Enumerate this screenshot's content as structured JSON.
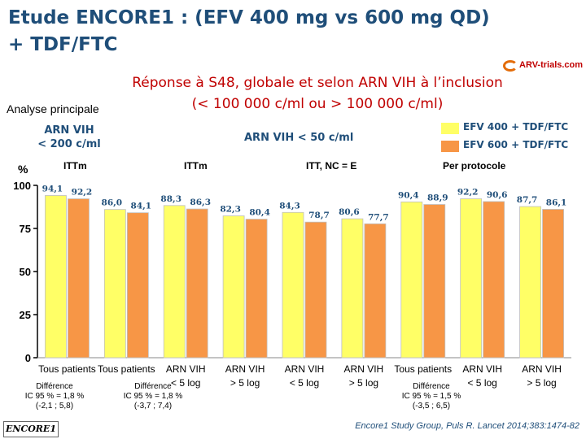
{
  "title_line1": "Etude ENCORE1 : (EFV 400 mg vs 600 mg QD)",
  "title_line2": "+ TDF/FTC",
  "logo_text": "ARV-trials.com",
  "subtitle_line1": "Réponse à S48, globale et selon ARN VIH à l’inclusion",
  "subtitle_line2": "(< 100 000 c/ml ou > 100 000 c/ml)",
  "analysis_label": "Analyse principale",
  "header_arn200_line1": "ARN VIH",
  "header_arn200_line2": "< 200 c/ml",
  "header_arn50": "ARN VIH < 50 c/ml",
  "group_labels": [
    "ITTm",
    "ITTm",
    "ITT, NC = E",
    "Per protocole"
  ],
  "y_unit": "%",
  "footnotes": {
    "diff1_line1": "Différence",
    "diff1_line2": "IC 95 % = 1,8 %",
    "diff1_line3": "(-2,1 ; 5,8)",
    "diff2_line1": "Différence",
    "diff2_line2": "IC 95 % = 1,8 %",
    "diff2_line3": "(-3,7 ; 7,4)",
    "diff3_line1": "Différence",
    "diff3_line2": "IC 95 % = 1,5 %",
    "diff3_line3": "(-3,5 ; 6,5)"
  },
  "study_tag": "ENCORE1",
  "citation": "Encore1 Study Group, Puls R. Lancet 2014;383:1474-82",
  "chart_data": {
    "type": "bar",
    "title": "Réponse à S48, globale et selon ARN VIH à l’inclusion",
    "ylabel": "%",
    "ylim": [
      0,
      100
    ],
    "yticks": [
      0,
      25,
      50,
      75,
      100
    ],
    "categories": [
      "Tous patients",
      "Tous patients",
      "ARN VIH < 5 log",
      "ARN VIH > 5 log",
      "ARN VIH < 5 log",
      "ARN VIH > 5 log",
      "Tous patients",
      "ARN VIH < 5 log",
      "ARN VIH > 5 log"
    ],
    "series": [
      {
        "name": "EFV 400 + TDF/FTC",
        "color": "#FFFF66",
        "values": [
          94.1,
          86.0,
          88.3,
          82.3,
          84.3,
          80.6,
          90.4,
          92.2,
          87.7
        ]
      },
      {
        "name": "EFV 600 + TDF/FTC",
        "color": "#F79646",
        "values": [
          92.2,
          84.1,
          86.3,
          80.4,
          78.7,
          77.7,
          88.9,
          90.6,
          86.1
        ]
      }
    ],
    "value_labels_400": [
      "94,1",
      "86,0",
      "88,3",
      "82,3",
      "84,3",
      "80,6",
      "90,4",
      "92,2",
      "87,7"
    ],
    "value_labels_600": [
      "92,2",
      "84,1",
      "86,3",
      "80,4",
      "78,7",
      "77,7",
      "88,9",
      "90,6",
      "86,1"
    ],
    "category_line1": [
      "Tous patients",
      "Tous patients",
      "ARN VIH",
      "ARN VIH",
      "ARN VIH",
      "ARN VIH",
      "Tous patients",
      "ARN VIH",
      "ARN VIH"
    ],
    "category_line2": [
      "",
      "",
      "< 5 log",
      "> 5 log",
      "< 5 log",
      "> 5 log",
      "",
      "< 5 log",
      "> 5 log"
    ],
    "legend_position": "top-right"
  }
}
